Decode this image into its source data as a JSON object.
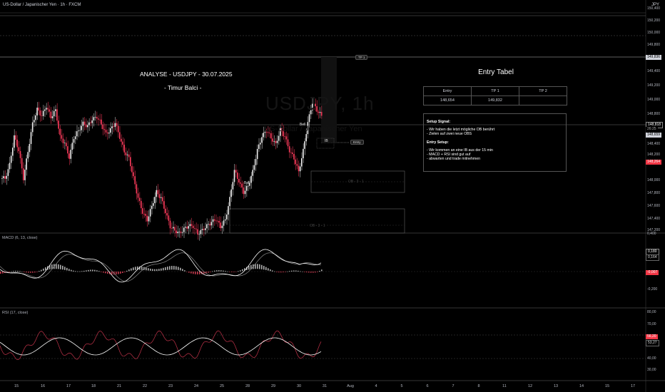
{
  "header": {
    "symbol": "US-Dollar / Japanischer Yen · 1h · FXCM",
    "currency": "JPY"
  },
  "watermark": {
    "symbol": "USDJPY, 1h",
    "name": "US-Dollar / Japanischer Yen"
  },
  "annotations": {
    "title": "ANALYSE - USDJPY - 30.07.2025",
    "author": "- Timur Balci -",
    "tp1_tag": "TP 1",
    "entry_tag": "Entry",
    "ib_label": "IB",
    "bell_label_1": "Bell",
    "bell_label_2": "Bell",
    "ob1_label": "OB - 3 - 1",
    "ob2_label": "OB - 3 - 1"
  },
  "entry_table": {
    "title": "Entry Tabel",
    "headers": [
      "Entry",
      "TP 1",
      "TP 2"
    ],
    "row": [
      "148,654",
      "149,832",
      ""
    ]
  },
  "setup": {
    "signal_title": "Setup Signal:",
    "signal_lines": [
      "- Wir haben die letzt mögliche OB berührt",
      "- Zielen auf zwei neue OBS"
    ],
    "entry_title": "Entry Setup:",
    "entry_lines": [
      "- Wir kommen an eine IB aus der 15 min",
      "- MACD + RSI sind gut auf",
      "- abwarten und trade mitnehmen"
    ]
  },
  "price_axis": {
    "labels": [
      "150,400",
      "150,200",
      "150,000",
      "149,800",
      "149,600",
      "149,400",
      "149,200",
      "149,000",
      "148,800",
      "148,600",
      "148,400",
      "148,200",
      "148,000",
      "147,800",
      "147,600",
      "147,400",
      "147,200"
    ],
    "tag_tp1": "149,836",
    "tag_close": "148,818",
    "tag_countdown": "26:25",
    "tag_entry": "148,659",
    "tag_red": "148,264"
  },
  "macd": {
    "label": "MACD (6, 13, close)",
    "axis_labels": [
      "0,400",
      "0,180",
      "0,164",
      "-0,007",
      "-0,200"
    ]
  },
  "rsi": {
    "label": "RSI (17, close)",
    "axis_labels": [
      "80,00",
      "70,00",
      "60,00",
      "56,20",
      "53,27",
      "40,00",
      "30,00"
    ]
  },
  "x_axis": {
    "labels": [
      "15",
      "16",
      "17",
      "18",
      "21",
      "22",
      "23",
      "24",
      "25",
      "28",
      "29",
      "30",
      "31",
      "Aug",
      "4",
      "5",
      "6",
      "7",
      "8",
      "11",
      "12",
      "13",
      "14",
      "15",
      "17"
    ]
  },
  "chart_data": {
    "type": "line",
    "title": "USDJPY, 1h",
    "price_range": [
      147.1,
      150.5
    ],
    "key_levels": {
      "tp1": 149.836,
      "last_close": 148.818,
      "entry": 148.659,
      "ib": 148.55
    },
    "close_series": [
      147.9,
      148.1,
      148.5,
      148.3,
      147.9,
      148.3,
      148.7,
      148.9,
      148.8,
      148.95,
      148.8,
      148.9,
      148.5,
      148.4,
      148.2,
      148.5,
      148.6,
      148.7,
      148.65,
      148.75,
      148.8,
      148.7,
      148.55,
      148.6,
      148.7,
      148.5,
      148.3,
      148.2,
      147.9,
      147.6,
      147.4,
      147.3,
      147.5,
      147.7,
      147.6,
      147.4,
      147.2,
      147.15,
      147.1,
      147.15,
      147.2,
      147.2,
      147.1,
      147.15,
      147.2,
      147.25,
      147.3,
      147.2,
      147.3,
      147.6,
      148.0,
      147.85,
      147.7,
      147.8,
      148.0,
      148.3,
      148.5,
      148.6,
      148.5,
      148.4,
      148.6,
      148.5,
      148.3,
      148.2,
      148.0,
      148.3,
      148.7,
      149.0,
      148.9,
      148.82
    ],
    "ylabel": "JPY"
  }
}
